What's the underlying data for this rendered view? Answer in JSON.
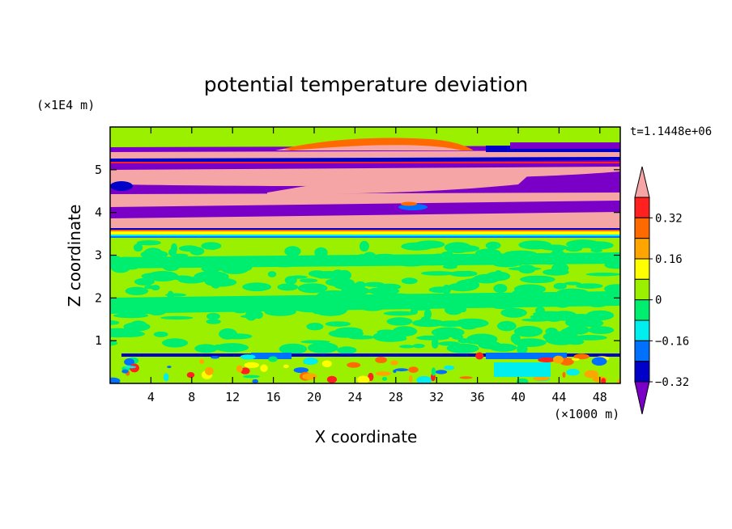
{
  "chart_data": {
    "type": "heatmap",
    "title": "potential temperature deviation",
    "xlabel": "X coordinate",
    "ylabel": "Z coordinate",
    "x_unit_label": "(×1000 m)",
    "y_unit_label": "(×1E4 m)",
    "time_label": "t=1.1448e+06",
    "xlim": [
      0,
      50
    ],
    "ylim": [
      0,
      6
    ],
    "x_ticks": [
      4,
      8,
      12,
      16,
      20,
      24,
      28,
      32,
      36,
      40,
      44,
      48
    ],
    "y_ticks": [
      1,
      2,
      3,
      4,
      5
    ],
    "colorbar": {
      "levels": [
        -0.4,
        -0.32,
        -0.24,
        -0.16,
        -0.08,
        0,
        0.08,
        0.16,
        0.24,
        0.32,
        0.4
      ],
      "labeled_levels": [
        "0.32",
        "0.16",
        "0",
        "−0.16",
        "−0.32"
      ],
      "colors_top_to_bottom": [
        "#f5a5a5",
        "#ff2020",
        "#ff6a00",
        "#ffa500",
        "#ffff00",
        "#9bf000",
        "#00ee70",
        "#00eeee",
        "#0070ff",
        "#0000c8",
        "#7a00c8"
      ]
    },
    "layers": [
      {
        "z_range": [
          0,
          0.7
        ],
        "value": "mixed, mostly 0 with small +/- patches"
      },
      {
        "z_range": [
          0.7,
          3.45
        ],
        "value": "≈ 0 to −0.08"
      },
      {
        "z_range": [
          3.45,
          3.6
        ],
        "value": "≈ −0.16 to +0.24"
      },
      {
        "z_range": [
          3.6,
          5.4
        ],
        "value": "alternating bands ≥ +0.4 and ≤ −0.4"
      },
      {
        "z_range": [
          5.4,
          6.0
        ],
        "value": "≈ 0"
      }
    ]
  }
}
